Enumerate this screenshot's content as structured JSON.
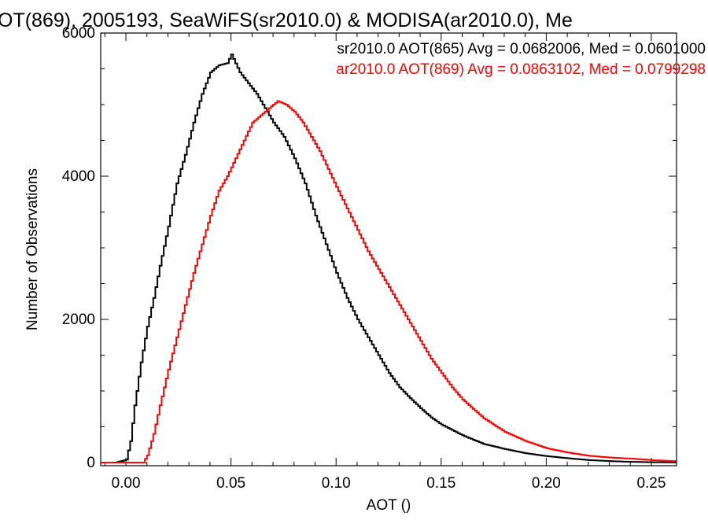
{
  "chart_data": {
    "type": "line",
    "step": true,
    "title": "OT(869), 2005193, SeaWiFS(sr2010.0) & MODISA(ar2010.0), Me",
    "xlabel": "AOT ()",
    "ylabel": "Number of Observations",
    "xlim": [
      -0.012,
      0.262
    ],
    "ylim": [
      0,
      6000
    ],
    "x_ticks": [
      0.0,
      0.05,
      0.1,
      0.15,
      0.2,
      0.25
    ],
    "x_tick_labels": [
      "0.00",
      "0.05",
      "0.10",
      "0.15",
      "0.20",
      "0.25"
    ],
    "y_ticks": [
      0,
      2000,
      4000,
      6000
    ],
    "y_tick_labels": [
      "0",
      "2000",
      "4000",
      "6000"
    ],
    "grid": false,
    "legend_placement": "top-right",
    "series": [
      {
        "name": "sr2010.0 AOT(865) Avg = 0.0682006, Med = 0.0601000",
        "color": "#000000",
        "points": [
          [
            -0.005,
            0
          ],
          [
            0.0,
            40
          ],
          [
            0.002,
            300
          ],
          [
            0.004,
            800
          ],
          [
            0.007,
            1400
          ],
          [
            0.01,
            1900
          ],
          [
            0.013,
            2300
          ],
          [
            0.016,
            2750
          ],
          [
            0.02,
            3300
          ],
          [
            0.024,
            3900
          ],
          [
            0.028,
            4300
          ],
          [
            0.032,
            4750
          ],
          [
            0.036,
            5150
          ],
          [
            0.04,
            5450
          ],
          [
            0.044,
            5550
          ],
          [
            0.048,
            5580
          ],
          [
            0.05,
            5700
          ],
          [
            0.054,
            5450
          ],
          [
            0.058,
            5300
          ],
          [
            0.062,
            5150
          ],
          [
            0.066,
            4950
          ],
          [
            0.07,
            4750
          ],
          [
            0.075,
            4550
          ],
          [
            0.08,
            4250
          ],
          [
            0.085,
            3900
          ],
          [
            0.09,
            3450
          ],
          [
            0.095,
            3050
          ],
          [
            0.1,
            2650
          ],
          [
            0.105,
            2300
          ],
          [
            0.11,
            2000
          ],
          [
            0.115,
            1750
          ],
          [
            0.12,
            1500
          ],
          [
            0.125,
            1250
          ],
          [
            0.13,
            1050
          ],
          [
            0.135,
            900
          ],
          [
            0.14,
            760
          ],
          [
            0.145,
            630
          ],
          [
            0.15,
            530
          ],
          [
            0.16,
            380
          ],
          [
            0.17,
            260
          ],
          [
            0.18,
            190
          ],
          [
            0.19,
            130
          ],
          [
            0.2,
            90
          ],
          [
            0.21,
            60
          ],
          [
            0.22,
            35
          ],
          [
            0.23,
            20
          ],
          [
            0.24,
            10
          ],
          [
            0.25,
            5
          ],
          [
            0.26,
            2
          ]
        ]
      },
      {
        "name": "ar2010.0 AOT(869) Avg = 0.0863102, Med = 0.0799298",
        "color": "#ff0000",
        "points": [
          [
            0.008,
            0
          ],
          [
            0.01,
            100
          ],
          [
            0.013,
            400
          ],
          [
            0.016,
            800
          ],
          [
            0.02,
            1300
          ],
          [
            0.024,
            1750
          ],
          [
            0.028,
            2200
          ],
          [
            0.032,
            2650
          ],
          [
            0.036,
            3050
          ],
          [
            0.04,
            3450
          ],
          [
            0.044,
            3800
          ],
          [
            0.048,
            4000
          ],
          [
            0.052,
            4250
          ],
          [
            0.056,
            4500
          ],
          [
            0.06,
            4750
          ],
          [
            0.064,
            4850
          ],
          [
            0.068,
            4950
          ],
          [
            0.072,
            5050
          ],
          [
            0.076,
            5000
          ],
          [
            0.08,
            4900
          ],
          [
            0.084,
            4750
          ],
          [
            0.088,
            4550
          ],
          [
            0.092,
            4350
          ],
          [
            0.096,
            4100
          ],
          [
            0.1,
            3850
          ],
          [
            0.105,
            3550
          ],
          [
            0.11,
            3250
          ],
          [
            0.115,
            2950
          ],
          [
            0.12,
            2700
          ],
          [
            0.125,
            2450
          ],
          [
            0.13,
            2200
          ],
          [
            0.135,
            1950
          ],
          [
            0.14,
            1700
          ],
          [
            0.145,
            1450
          ],
          [
            0.15,
            1250
          ],
          [
            0.155,
            1050
          ],
          [
            0.16,
            880
          ],
          [
            0.17,
            620
          ],
          [
            0.18,
            430
          ],
          [
            0.19,
            300
          ],
          [
            0.2,
            200
          ],
          [
            0.21,
            140
          ],
          [
            0.22,
            95
          ],
          [
            0.23,
            70
          ],
          [
            0.24,
            55
          ],
          [
            0.25,
            35
          ],
          [
            0.26,
            20
          ]
        ]
      }
    ]
  }
}
